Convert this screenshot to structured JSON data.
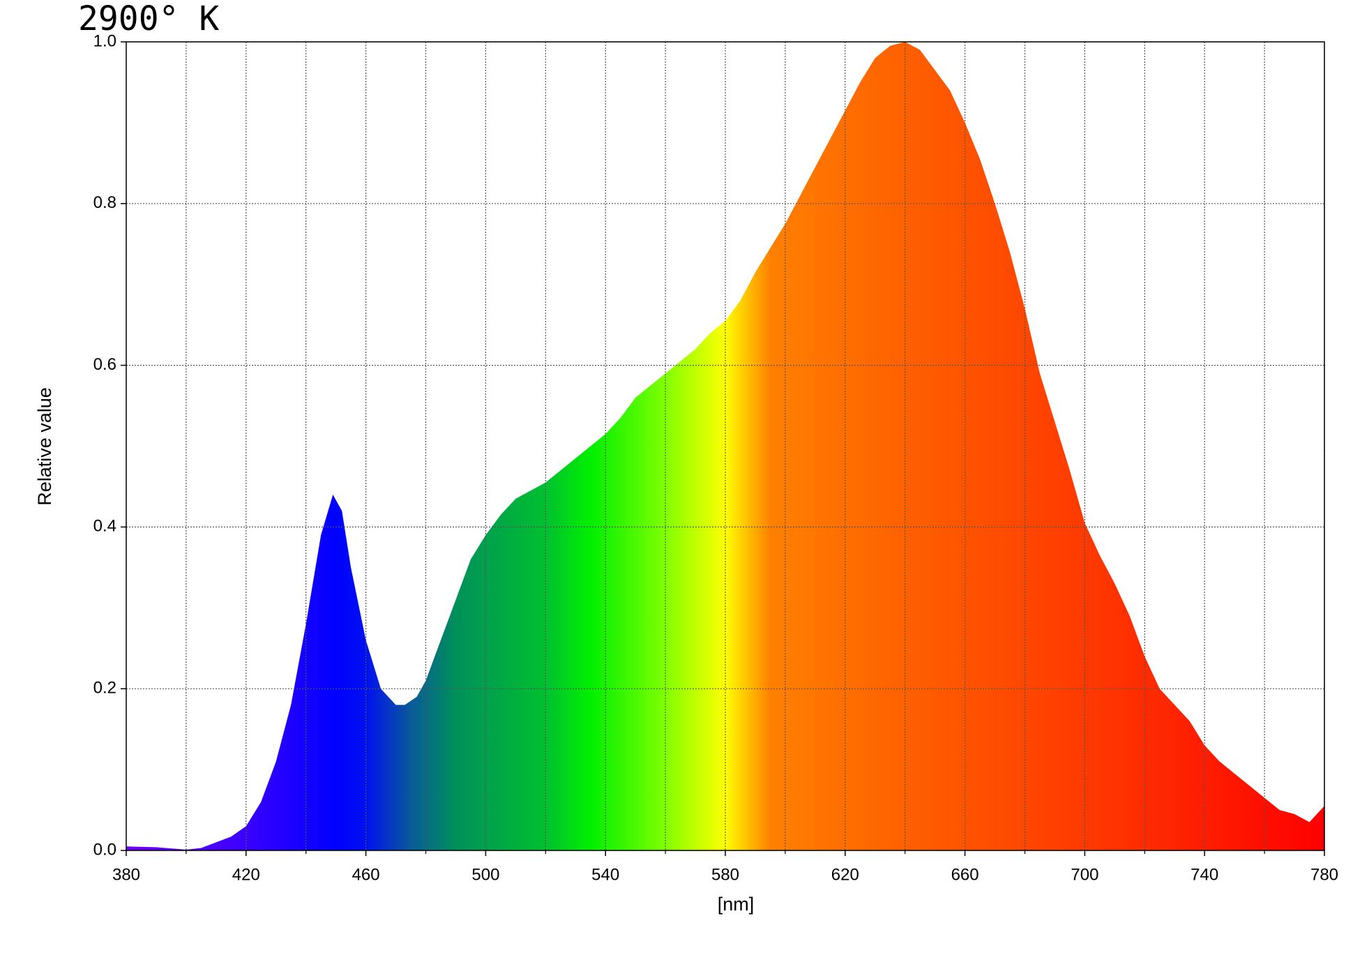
{
  "chart_data": {
    "type": "area",
    "title": "2900° K",
    "xlabel": "[nm]",
    "ylabel": "Relative value",
    "x": [
      380,
      390,
      400,
      405,
      410,
      415,
      420,
      425,
      430,
      435,
      440,
      445,
      449,
      452,
      455,
      460,
      465,
      470,
      473,
      477,
      480,
      485,
      490,
      495,
      500,
      505,
      510,
      515,
      520,
      525,
      530,
      535,
      540,
      545,
      550,
      555,
      560,
      565,
      570,
      575,
      580,
      585,
      590,
      595,
      600,
      605,
      610,
      615,
      620,
      625,
      630,
      635,
      640,
      645,
      650,
      655,
      660,
      665,
      670,
      675,
      680,
      685,
      690,
      695,
      700,
      705,
      710,
      715,
      720,
      725,
      730,
      735,
      740,
      745,
      750,
      755,
      760,
      765,
      770,
      775,
      780
    ],
    "y": [
      0.005,
      0.004,
      0.001,
      0.003,
      0.01,
      0.017,
      0.03,
      0.06,
      0.11,
      0.18,
      0.28,
      0.39,
      0.44,
      0.42,
      0.35,
      0.26,
      0.2,
      0.18,
      0.18,
      0.19,
      0.21,
      0.26,
      0.31,
      0.36,
      0.39,
      0.415,
      0.435,
      0.445,
      0.455,
      0.47,
      0.485,
      0.5,
      0.515,
      0.535,
      0.56,
      0.575,
      0.59,
      0.605,
      0.62,
      0.64,
      0.655,
      0.68,
      0.715,
      0.745,
      0.775,
      0.81,
      0.845,
      0.88,
      0.915,
      0.95,
      0.98,
      0.995,
      1.0,
      0.99,
      0.965,
      0.94,
      0.9,
      0.855,
      0.8,
      0.74,
      0.67,
      0.59,
      0.53,
      0.47,
      0.405,
      0.365,
      0.33,
      0.29,
      0.24,
      0.2,
      0.18,
      0.16,
      0.13,
      0.11,
      0.095,
      0.08,
      0.065,
      0.05,
      0.045,
      0.035,
      0.055
    ],
    "xlim": [
      380,
      780
    ],
    "ylim": [
      0,
      1
    ],
    "xticks": [
      380,
      420,
      460,
      500,
      540,
      580,
      620,
      660,
      700,
      740,
      780
    ],
    "x_gridlines": [
      400,
      440,
      480,
      520,
      560,
      600,
      640,
      680,
      720,
      760
    ],
    "yticks": [
      {
        "value": 0,
        "label": "0.0"
      },
      0.2,
      0.4,
      0.6,
      0.8,
      {
        "value": 1,
        "label": "1.0"
      }
    ],
    "grid": true,
    "gradient": [
      {
        "x": 380,
        "color": "#7000ff"
      },
      {
        "x": 420,
        "color": "#3a00ff"
      },
      {
        "x": 450,
        "color": "#0000ff"
      },
      {
        "x": 460,
        "color": "#0010f0"
      },
      {
        "x": 475,
        "color": "#0a5a9a"
      },
      {
        "x": 490,
        "color": "#00905a"
      },
      {
        "x": 520,
        "color": "#00c030"
      },
      {
        "x": 535,
        "color": "#00f000"
      },
      {
        "x": 560,
        "color": "#80ff00"
      },
      {
        "x": 580,
        "color": "#ffff00"
      },
      {
        "x": 595,
        "color": "#ff8000"
      },
      {
        "x": 640,
        "color": "#ff6000"
      },
      {
        "x": 700,
        "color": "#ff3a00"
      },
      {
        "x": 780,
        "color": "#ff0000"
      }
    ],
    "title_color": "#e8103a"
  }
}
